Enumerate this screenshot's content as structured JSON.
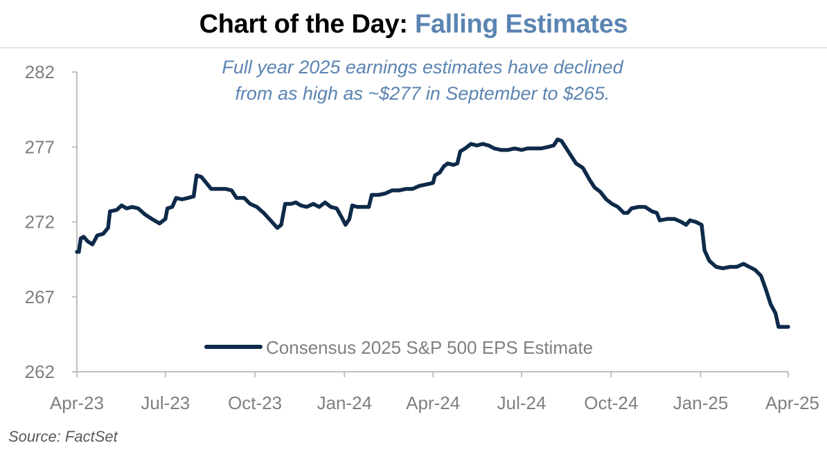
{
  "header": {
    "title_prefix": "Chart of the Day:",
    "title_accent": "Falling Estimates"
  },
  "source": "Source: FactSet",
  "colors": {
    "line": "#0e2a4a",
    "accent": "#5b84b1",
    "axis": "#bfbfbf",
    "tick_text": "#7f7f7f"
  },
  "chart_data": {
    "type": "line",
    "title": "Chart of the Day: Falling Estimates",
    "xlabel": "",
    "ylabel": "",
    "ylim": [
      262,
      282
    ],
    "yticks": [
      262,
      267,
      272,
      277,
      282
    ],
    "xlim": [
      "2023-04-01",
      "2025-04-01"
    ],
    "xticks": [
      "2023-04-01",
      "2023-07-01",
      "2023-10-01",
      "2024-01-01",
      "2024-04-01",
      "2024-07-01",
      "2024-10-01",
      "2025-01-01",
      "2025-04-01"
    ],
    "xtick_labels": [
      "Apr-23",
      "Jul-23",
      "Oct-23",
      "Jan-24",
      "Apr-24",
      "Jul-24",
      "Oct-24",
      "Jan-25",
      "Apr-25"
    ],
    "grid": false,
    "legend_position": "bottom-center",
    "annotation": [
      "Full year 2025 earnings estimates have declined",
      "from as high as ~$277 in September to $265."
    ],
    "series": [
      {
        "name": "Consensus 2025 S&P 500 EPS Estimate",
        "points": [
          [
            "2023-04-01",
            270.0
          ],
          [
            "2023-04-03",
            270.0
          ],
          [
            "2023-04-05",
            270.9
          ],
          [
            "2023-04-08",
            271.0
          ],
          [
            "2023-04-12",
            270.7
          ],
          [
            "2023-04-17",
            270.5
          ],
          [
            "2023-04-22",
            271.1
          ],
          [
            "2023-04-28",
            271.2
          ],
          [
            "2023-05-03",
            271.6
          ],
          [
            "2023-05-05",
            272.7
          ],
          [
            "2023-05-12",
            272.8
          ],
          [
            "2023-05-17",
            273.1
          ],
          [
            "2023-05-22",
            272.9
          ],
          [
            "2023-05-28",
            273.0
          ],
          [
            "2023-06-03",
            272.9
          ],
          [
            "2023-06-10",
            272.5
          ],
          [
            "2023-06-17",
            272.2
          ],
          [
            "2023-06-25",
            271.9
          ],
          [
            "2023-07-01",
            272.2
          ],
          [
            "2023-07-03",
            272.9
          ],
          [
            "2023-07-08",
            273.0
          ],
          [
            "2023-07-12",
            273.6
          ],
          [
            "2023-07-18",
            273.5
          ],
          [
            "2023-07-24",
            273.6
          ],
          [
            "2023-07-30",
            273.7
          ],
          [
            "2023-08-02",
            275.1
          ],
          [
            "2023-08-07",
            275.0
          ],
          [
            "2023-08-12",
            274.6
          ],
          [
            "2023-08-17",
            274.2
          ],
          [
            "2023-08-24",
            274.2
          ],
          [
            "2023-09-01",
            274.2
          ],
          [
            "2023-09-07",
            274.1
          ],
          [
            "2023-09-12",
            273.6
          ],
          [
            "2023-09-20",
            273.6
          ],
          [
            "2023-09-26",
            273.2
          ],
          [
            "2023-10-03",
            273.0
          ],
          [
            "2023-10-10",
            272.6
          ],
          [
            "2023-10-17",
            272.1
          ],
          [
            "2023-10-24",
            271.6
          ],
          [
            "2023-10-28",
            271.8
          ],
          [
            "2023-11-01",
            273.2
          ],
          [
            "2023-11-07",
            273.2
          ],
          [
            "2023-11-12",
            273.3
          ],
          [
            "2023-11-17",
            273.1
          ],
          [
            "2023-11-23",
            273.0
          ],
          [
            "2023-11-30",
            273.2
          ],
          [
            "2023-12-06",
            273.0
          ],
          [
            "2023-12-12",
            273.3
          ],
          [
            "2023-12-18",
            273.0
          ],
          [
            "2023-12-24",
            272.9
          ],
          [
            "2023-12-30",
            272.2
          ],
          [
            "2024-01-02",
            271.8
          ],
          [
            "2024-01-06",
            272.2
          ],
          [
            "2024-01-09",
            273.1
          ],
          [
            "2024-01-14",
            273.0
          ],
          [
            "2024-01-20",
            273.0
          ],
          [
            "2024-01-26",
            273.0
          ],
          [
            "2024-01-29",
            273.8
          ],
          [
            "2024-02-05",
            273.8
          ],
          [
            "2024-02-12",
            273.9
          ],
          [
            "2024-02-19",
            274.1
          ],
          [
            "2024-02-26",
            274.1
          ],
          [
            "2024-03-04",
            274.2
          ],
          [
            "2024-03-11",
            274.2
          ],
          [
            "2024-03-18",
            274.4
          ],
          [
            "2024-03-25",
            274.5
          ],
          [
            "2024-04-01",
            274.6
          ],
          [
            "2024-04-03",
            275.1
          ],
          [
            "2024-04-08",
            275.3
          ],
          [
            "2024-04-12",
            275.7
          ],
          [
            "2024-04-16",
            275.9
          ],
          [
            "2024-04-22",
            275.8
          ],
          [
            "2024-04-26",
            275.9
          ],
          [
            "2024-04-29",
            276.7
          ],
          [
            "2024-05-04",
            276.9
          ],
          [
            "2024-05-10",
            277.2
          ],
          [
            "2024-05-16",
            277.1
          ],
          [
            "2024-05-22",
            277.2
          ],
          [
            "2024-05-28",
            277.1
          ],
          [
            "2024-06-03",
            276.9
          ],
          [
            "2024-06-10",
            276.8
          ],
          [
            "2024-06-17",
            276.8
          ],
          [
            "2024-06-24",
            276.9
          ],
          [
            "2024-07-01",
            276.8
          ],
          [
            "2024-07-07",
            276.9
          ],
          [
            "2024-07-14",
            276.9
          ],
          [
            "2024-07-21",
            276.9
          ],
          [
            "2024-07-28",
            277.0
          ],
          [
            "2024-08-03",
            277.1
          ],
          [
            "2024-08-07",
            277.5
          ],
          [
            "2024-08-11",
            277.4
          ],
          [
            "2024-08-15",
            277.0
          ],
          [
            "2024-08-20",
            276.5
          ],
          [
            "2024-08-26",
            275.9
          ],
          [
            "2024-09-02",
            275.6
          ],
          [
            "2024-09-09",
            274.8
          ],
          [
            "2024-09-14",
            274.3
          ],
          [
            "2024-09-20",
            274.0
          ],
          [
            "2024-09-26",
            273.5
          ],
          [
            "2024-10-02",
            273.2
          ],
          [
            "2024-10-08",
            273.0
          ],
          [
            "2024-10-14",
            272.6
          ],
          [
            "2024-10-18",
            272.6
          ],
          [
            "2024-10-22",
            272.9
          ],
          [
            "2024-10-29",
            273.0
          ],
          [
            "2024-11-05",
            273.0
          ],
          [
            "2024-11-12",
            272.7
          ],
          [
            "2024-11-17",
            272.6
          ],
          [
            "2024-11-20",
            272.1
          ],
          [
            "2024-11-28",
            272.2
          ],
          [
            "2024-12-05",
            272.2
          ],
          [
            "2024-12-12",
            272.0
          ],
          [
            "2024-12-17",
            271.8
          ],
          [
            "2024-12-21",
            272.1
          ],
          [
            "2024-12-27",
            272.0
          ],
          [
            "2025-01-02",
            271.8
          ],
          [
            "2025-01-05",
            270.1
          ],
          [
            "2025-01-10",
            269.4
          ],
          [
            "2025-01-17",
            269.0
          ],
          [
            "2025-01-24",
            268.9
          ],
          [
            "2025-01-31",
            269.0
          ],
          [
            "2025-02-07",
            269.0
          ],
          [
            "2025-02-14",
            269.2
          ],
          [
            "2025-02-20",
            269.0
          ],
          [
            "2025-02-26",
            268.8
          ],
          [
            "2025-03-04",
            268.4
          ],
          [
            "2025-03-09",
            267.5
          ],
          [
            "2025-03-14",
            266.5
          ],
          [
            "2025-03-19",
            265.9
          ],
          [
            "2025-03-22",
            265.0
          ],
          [
            "2025-04-01",
            265.0
          ]
        ]
      }
    ]
  }
}
